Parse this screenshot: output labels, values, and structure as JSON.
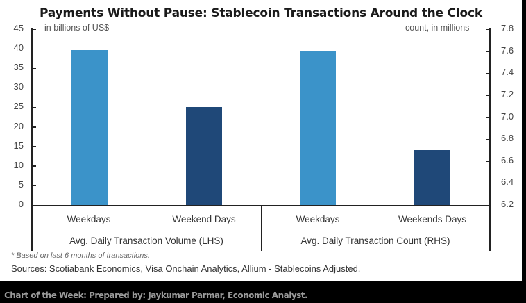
{
  "chart_data": {
    "type": "bar",
    "title": "Payments Without Pause: Stablecoin Transactions Around the Clock",
    "groups": [
      {
        "label": "Avg. Daily Transaction Volume (LHS)",
        "axis": "left",
        "categories": [
          "Weekdays",
          "Weekend Days"
        ],
        "values": [
          39.6,
          25.1
        ],
        "colors": [
          "#3b93c9",
          "#1f4878"
        ]
      },
      {
        "label": "Avg. Daily Transaction Count (RHS)",
        "axis": "right",
        "categories": [
          "Weekdays",
          "Weekends Days"
        ],
        "values": [
          7.6,
          6.7
        ],
        "colors": [
          "#3b93c9",
          "#1f4878"
        ]
      }
    ],
    "left_axis": {
      "label": "in billions of US$",
      "ylim": [
        0,
        45
      ],
      "ticks": [
        "0",
        "5",
        "10",
        "15",
        "20",
        "25",
        "30",
        "35",
        "40",
        "45"
      ]
    },
    "right_axis": {
      "label": "count, in millions",
      "ylim": [
        6.2,
        7.8
      ],
      "ticks": [
        "6.2",
        "6.4",
        "6.6",
        "6.8",
        "7.0",
        "7.2",
        "7.4",
        "7.6",
        "7.8"
      ]
    },
    "grid": false,
    "legend": "none"
  },
  "text": {
    "title": "Payments Without Pause: Stablecoin Transactions Around the Clock",
    "left_unit": "in billions of US$",
    "right_unit": "count, in millions",
    "cat1": "Weekdays",
    "cat2": "Weekend Days",
    "cat3": "Weekdays",
    "cat4": "Weekends Days",
    "group1": "Avg. Daily Transaction Volume (LHS)",
    "group2": "Avg. Daily Transaction Count (RHS)",
    "note": "* Based on last 6 months of transactions.",
    "sources": "Sources: Scotiabank Economics, Visa Onchain Analytics, Allium - Stablecoins Adjusted.",
    "footer": "Chart of the Week: Prepared by: Jaykumar Parmar, Economic Analyst."
  },
  "colors": {
    "light_bar": "#3b93c9",
    "dark_bar": "#1f4878"
  }
}
